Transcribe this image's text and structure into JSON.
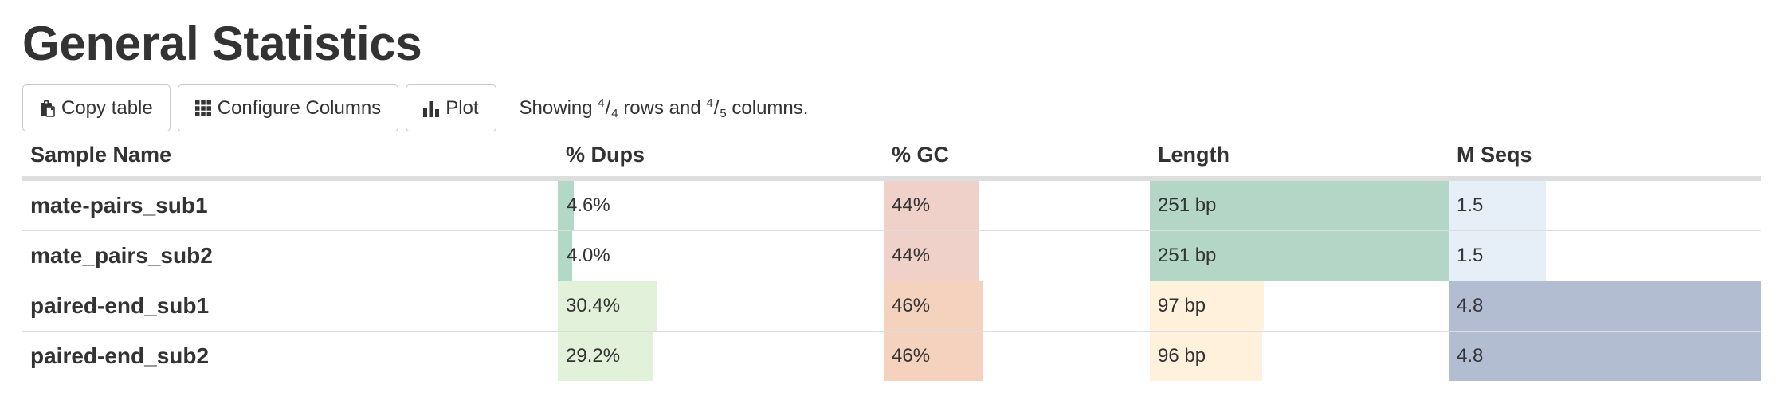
{
  "page": {
    "title": "General Statistics"
  },
  "toolbar": {
    "copy_label": "Copy table",
    "configure_label": "Configure Columns",
    "plot_label": "Plot",
    "showing": {
      "prefix": "Showing",
      "rows_shown": "4",
      "rows_total": "4",
      "mid": "rows and",
      "cols_shown": "4",
      "cols_total": "5",
      "suffix": "columns."
    }
  },
  "table": {
    "headers": [
      "Sample Name",
      "% Dups",
      "% GC",
      "Length",
      "M Seqs"
    ],
    "colors": {
      "dups": {
        "high": "#b2d8c6",
        "low": "#e2f1d9"
      },
      "gc": {
        "low": "#efd1ca",
        "high": "#f4d2bd"
      },
      "length": {
        "high": "#b3d6c6",
        "low": "#fff1dc"
      },
      "mseqs": {
        "low": "#e6eff8",
        "high": "#b3bdd1"
      }
    },
    "rows": [
      {
        "sample": "mate-pairs_sub1",
        "dups": "4.6%",
        "gc": "44%",
        "length": "251 bp",
        "mseqs": "1.5",
        "dups_frac": 0.049,
        "gc_frac": 0.355,
        "length_frac": 1.0,
        "mseqs_frac": 0.31
      },
      {
        "sample": "mate_pairs_sub2",
        "dups": "4.0%",
        "gc": "44%",
        "length": "251 bp",
        "mseqs": "1.5",
        "dups_frac": 0.043,
        "gc_frac": 0.355,
        "length_frac": 1.0,
        "mseqs_frac": 0.31
      },
      {
        "sample": "paired-end_sub1",
        "dups": "30.4%",
        "gc": "46%",
        "length": "97 bp",
        "mseqs": "4.8",
        "dups_frac": 0.303,
        "gc_frac": 0.371,
        "length_frac": 0.38,
        "mseqs_frac": 1.0
      },
      {
        "sample": "paired-end_sub2",
        "dups": "29.2%",
        "gc": "46%",
        "length": "96 bp",
        "mseqs": "4.8",
        "dups_frac": 0.293,
        "gc_frac": 0.371,
        "length_frac": 0.376,
        "mseqs_frac": 1.0
      }
    ]
  }
}
